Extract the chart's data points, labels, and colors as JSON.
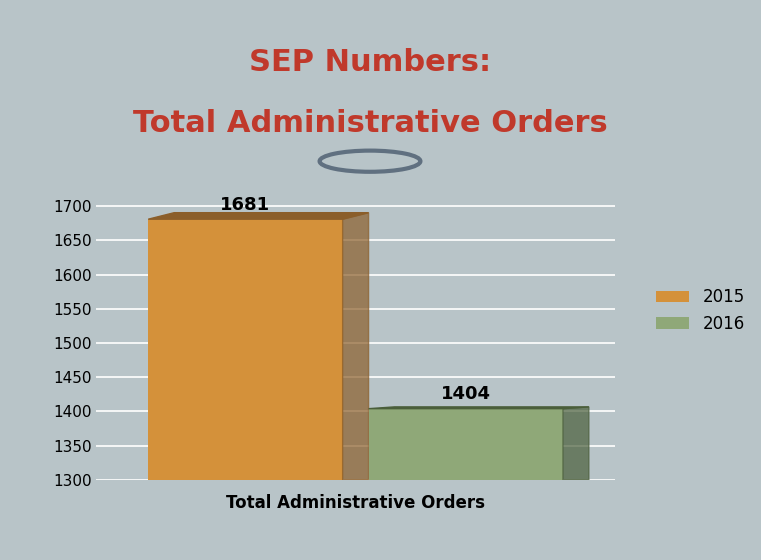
{
  "title_line1": "SEP Numbers:",
  "title_line2": "Total Administrative Orders",
  "title_color": "#C0392B",
  "categories": [
    "Total Administrative Orders"
  ],
  "series": [
    {
      "label": "2015",
      "value": 1681,
      "color": "#D4913A",
      "dark_color": "#8B5E2A"
    },
    {
      "label": "2016",
      "value": 1404,
      "color": "#8FA878",
      "dark_color": "#4A5E3A"
    }
  ],
  "ylim": [
    1300,
    1750
  ],
  "yticks": [
    1300,
    1350,
    1400,
    1450,
    1500,
    1550,
    1600,
    1650,
    1700
  ],
  "xlabel": "Total Administrative Orders",
  "background_color": "#B8C4C8",
  "plot_bg_color": "#B8C4C8",
  "title_bg_color": "#FFFFFF",
  "grid_color": "#FFFFFF",
  "bar_width": 0.3,
  "bar_label_fontsize": 13,
  "axis_label_fontsize": 12,
  "legend_fontsize": 12,
  "title_fontsize": 22
}
